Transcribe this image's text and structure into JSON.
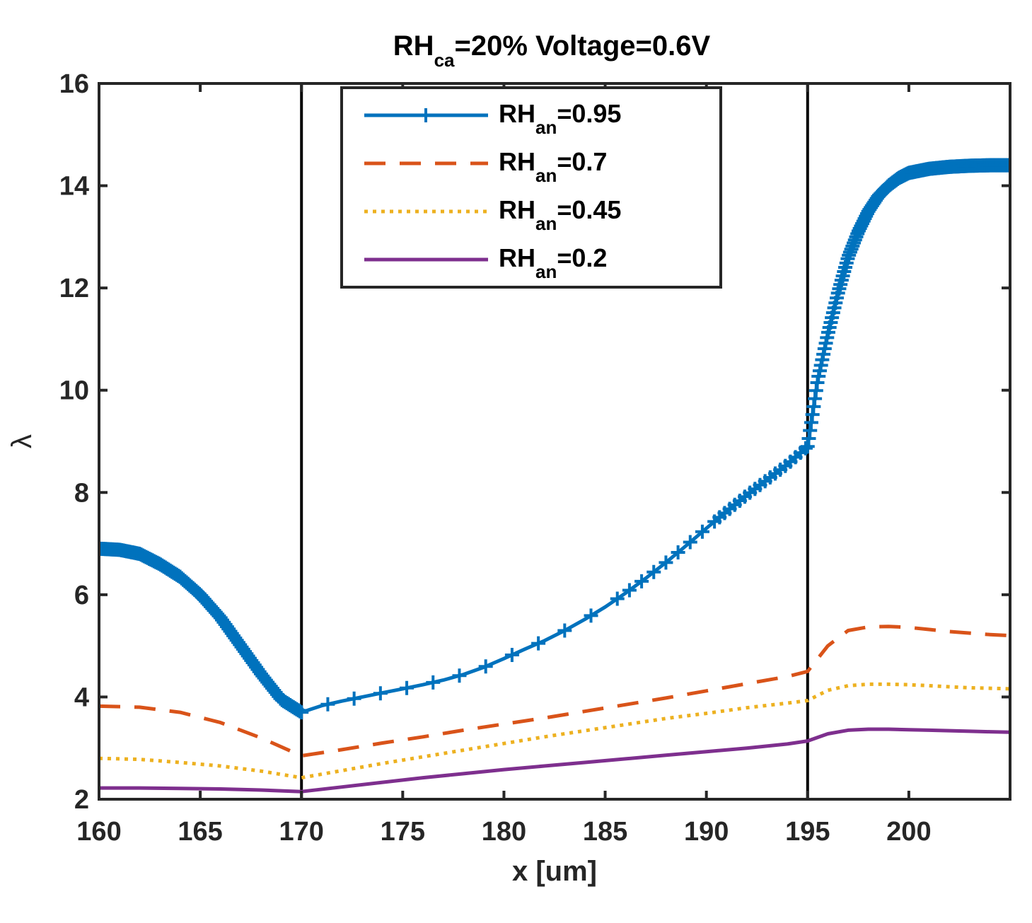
{
  "chart_data": {
    "type": "line",
    "title": {
      "prefix": "RH",
      "subscript": "ca",
      "suffix": "=20% Voltage=0.6V"
    },
    "xlabel": "x [um]",
    "ylabel": "λ",
    "xlim": [
      160,
      205
    ],
    "ylim": [
      2,
      16
    ],
    "xticks": [
      160,
      165,
      170,
      175,
      180,
      185,
      190,
      195,
      200
    ],
    "yticks": [
      2,
      4,
      6,
      8,
      10,
      12,
      14,
      16
    ],
    "vertical_lines": [
      170,
      195
    ],
    "legend_position": "top-center",
    "series": [
      {
        "name": "RH_an=0.95",
        "label_prefix": "RH",
        "label_sub": "an",
        "label_suffix": "=0.95",
        "color": "#0072BD",
        "style": "solid-plus",
        "x": [
          160,
          161,
          162,
          163,
          164,
          165,
          166,
          167,
          168,
          169,
          170,
          171,
          172,
          173,
          174,
          175,
          176,
          177,
          178,
          179,
          180,
          181,
          182,
          183,
          184,
          185,
          186,
          187,
          188,
          189,
          190,
          191,
          192,
          193,
          194,
          195,
          195.5,
          196,
          196.5,
          197,
          197.5,
          198,
          198.5,
          199,
          199.5,
          200,
          201,
          202,
          203,
          204,
          205
        ],
        "values": [
          6.9,
          6.88,
          6.8,
          6.6,
          6.35,
          6.0,
          5.55,
          5.0,
          4.45,
          3.95,
          3.7,
          3.83,
          3.92,
          4.0,
          4.08,
          4.16,
          4.24,
          4.33,
          4.44,
          4.58,
          4.75,
          4.93,
          5.1,
          5.3,
          5.52,
          5.76,
          6.03,
          6.32,
          6.63,
          6.96,
          7.3,
          7.63,
          7.95,
          8.25,
          8.55,
          8.9,
          10.2,
          11.1,
          11.9,
          12.6,
          13.1,
          13.5,
          13.8,
          14.0,
          14.15,
          14.25,
          14.33,
          14.37,
          14.39,
          14.4,
          14.4
        ]
      },
      {
        "name": "RH_an=0.7",
        "label_prefix": "RH",
        "label_sub": "an",
        "label_suffix": "=0.7",
        "color": "#D95319",
        "style": "dashed",
        "x": [
          160,
          162,
          164,
          166,
          168,
          170,
          172,
          174,
          176,
          178,
          180,
          182,
          184,
          186,
          188,
          190,
          192,
          194,
          195,
          196,
          197,
          198,
          199,
          200,
          201,
          202,
          203,
          204,
          205
        ],
        "values": [
          3.82,
          3.8,
          3.7,
          3.5,
          3.2,
          2.85,
          2.97,
          3.1,
          3.22,
          3.35,
          3.47,
          3.59,
          3.72,
          3.85,
          3.98,
          4.12,
          4.26,
          4.4,
          4.5,
          5.0,
          5.3,
          5.37,
          5.38,
          5.36,
          5.32,
          5.28,
          5.25,
          5.22,
          5.2
        ]
      },
      {
        "name": "RH_an=0.45",
        "label_prefix": "RH",
        "label_sub": "an",
        "label_suffix": "=0.45",
        "color": "#EDB120",
        "style": "dotted",
        "x": [
          160,
          162,
          164,
          166,
          168,
          170,
          172,
          174,
          176,
          178,
          180,
          182,
          184,
          186,
          188,
          190,
          192,
          194,
          195,
          196,
          197,
          198,
          199,
          200,
          201,
          202,
          203,
          204,
          205
        ],
        "values": [
          2.8,
          2.78,
          2.72,
          2.65,
          2.55,
          2.42,
          2.56,
          2.7,
          2.83,
          2.96,
          3.09,
          3.22,
          3.34,
          3.46,
          3.58,
          3.68,
          3.79,
          3.88,
          3.93,
          4.13,
          4.22,
          4.25,
          4.25,
          4.24,
          4.22,
          4.2,
          4.18,
          4.17,
          4.16
        ]
      },
      {
        "name": "RH_an=0.2",
        "label_prefix": "RH",
        "label_sub": "an",
        "label_suffix": "=0.2",
        "color": "#7E2F8E",
        "style": "solid",
        "x": [
          160,
          162,
          164,
          166,
          168,
          170,
          172,
          174,
          176,
          178,
          180,
          182,
          184,
          186,
          188,
          190,
          192,
          194,
          195,
          196,
          197,
          198,
          199,
          200,
          201,
          202,
          203,
          204,
          205
        ],
        "values": [
          2.22,
          2.22,
          2.21,
          2.2,
          2.18,
          2.15,
          2.24,
          2.33,
          2.42,
          2.5,
          2.58,
          2.65,
          2.72,
          2.79,
          2.86,
          2.93,
          3.0,
          3.08,
          3.14,
          3.28,
          3.35,
          3.37,
          3.37,
          3.36,
          3.35,
          3.34,
          3.33,
          3.32,
          3.31
        ]
      }
    ]
  }
}
